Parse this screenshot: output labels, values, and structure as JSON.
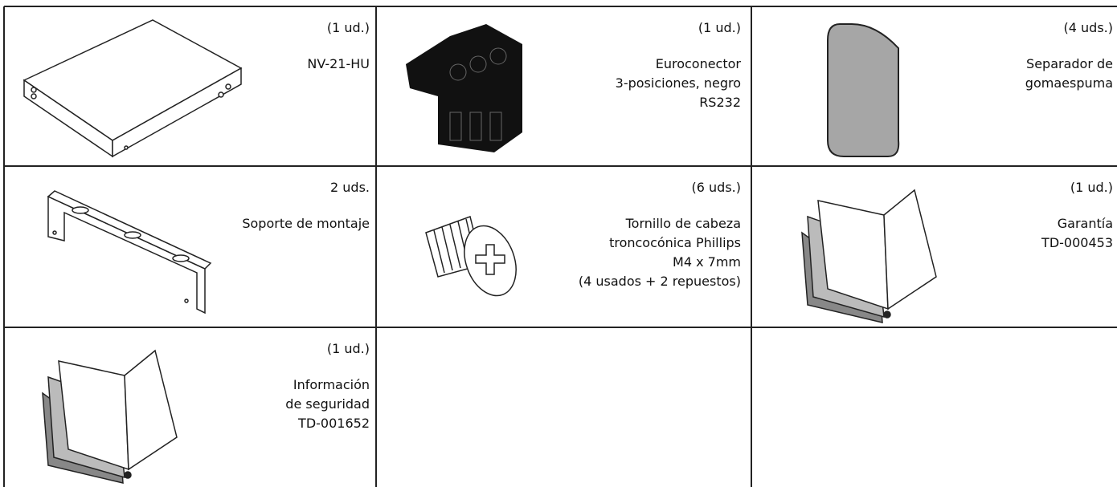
{
  "items": [
    {
      "quantity": "(1 ud.)",
      "description": [
        "NV-21-HU"
      ]
    },
    {
      "quantity": "(1 ud.)",
      "description": [
        "Euroconector",
        "3-posiciones, negro",
        "RS232"
      ]
    },
    {
      "quantity": "(4 uds.)",
      "description": [
        "Separador de",
        "gomaespuma"
      ]
    },
    {
      "quantity": "2 uds.",
      "description": [
        "Soporte de montaje"
      ]
    },
    {
      "quantity": "(6 uds.)",
      "description": [
        "Tornillo de cabeza",
        "troncocónica Phillips",
        "M4 x 7mm",
        "(4 usados + 2 repuestos)"
      ]
    },
    {
      "quantity": "(1 ud.)",
      "description": [
        "Garantía",
        "TD-000453"
      ]
    },
    {
      "quantity": "(1 ud.)",
      "description": [
        "Información",
        "de seguridad",
        "TD-001652"
      ]
    }
  ]
}
